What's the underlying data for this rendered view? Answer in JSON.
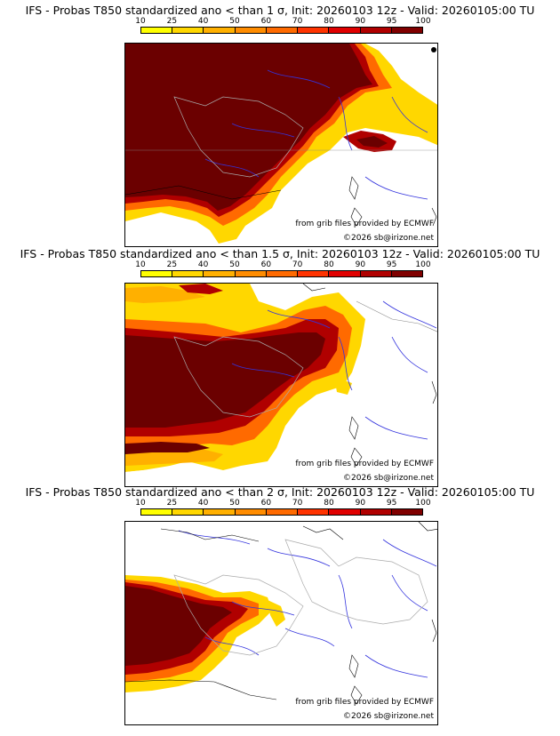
{
  "colorbar": {
    "ticks": [
      "10",
      "25",
      "40",
      "50",
      "60",
      "70",
      "80",
      "90",
      "95",
      "100"
    ],
    "colors": [
      "#ffff00",
      "#ffd700",
      "#ffb000",
      "#ff8c00",
      "#ff6a00",
      "#ff3300",
      "#e00000",
      "#b00000",
      "#800000"
    ]
  },
  "panels": [
    {
      "title": "IFS - Probas T850  standardized ano < than 1 σ, Init: 20260103 12z - Valid: 20260105:00 TU",
      "credit_source": "from grib files provided by ECMWF",
      "credit_copyright": "©2026 sb@irizone.net"
    },
    {
      "title": "IFS - Probas T850  standardized ano < than 1.5 σ, Init: 20260103 12z - Valid: 20260105:00 TU",
      "credit_source": "from grib files provided by ECMWF",
      "credit_copyright": "©2026 sb@irizone.net"
    },
    {
      "title": "IFS - Probas T850  standardized ano < than 2 σ, Init: 20260103 12z - Valid: 20260105:00 TU",
      "credit_source": "from grib files provided by ECMWF",
      "credit_copyright": "©2026 sb@irizone.net"
    }
  ]
}
